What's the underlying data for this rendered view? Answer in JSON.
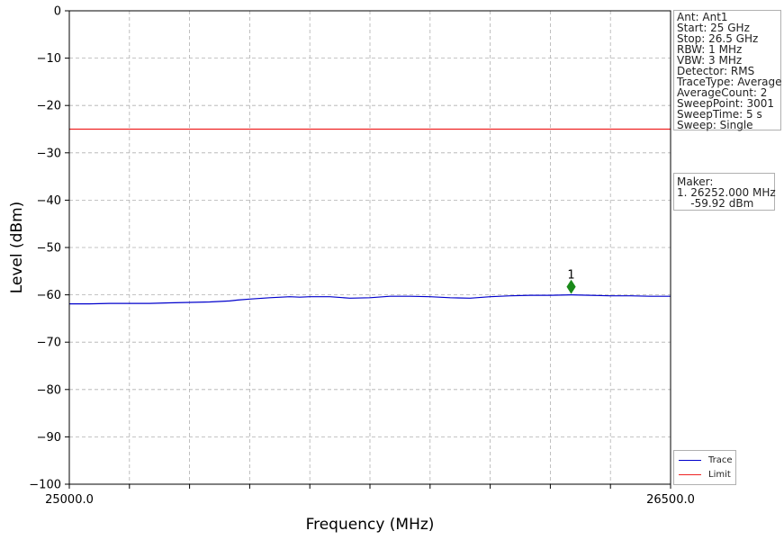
{
  "chart_data": {
    "type": "line",
    "xlabel": "Frequency (MHz)",
    "ylabel": "Level (dBm)",
    "xlim": [
      25000.0,
      26500.0
    ],
    "ylim": [
      -100,
      0
    ],
    "x_tick_labels": [
      "25000.0",
      "26500.0"
    ],
    "x_grid_count": 10,
    "y_ticks": [
      0,
      -10,
      -20,
      -30,
      -40,
      -50,
      -60,
      -70,
      -80,
      -90,
      -100
    ],
    "y_tick_labels": [
      "0",
      "−10",
      "−20",
      "−30",
      "−40",
      "−50",
      "−60",
      "−70",
      "−80",
      "−90",
      "−100"
    ],
    "grid": true,
    "series": [
      {
        "name": "Trace",
        "color": "#0000cc",
        "x": [
          25000,
          25050,
          25100,
          25150,
          25200,
          25250,
          25300,
          25350,
          25400,
          25420,
          25450,
          25500,
          25550,
          25575,
          25600,
          25650,
          25700,
          25750,
          25800,
          25850,
          25900,
          25950,
          26000,
          26050,
          26100,
          26150,
          26200,
          26252,
          26300,
          26350,
          26400,
          26450,
          26500
        ],
        "y": [
          -61.9,
          -61.9,
          -61.8,
          -61.8,
          -61.8,
          -61.7,
          -61.6,
          -61.5,
          -61.3,
          -61.1,
          -60.9,
          -60.6,
          -60.4,
          -60.5,
          -60.4,
          -60.4,
          -60.7,
          -60.6,
          -60.3,
          -60.3,
          -60.4,
          -60.6,
          -60.7,
          -60.4,
          -60.2,
          -60.1,
          -60.1,
          -60.0,
          -60.1,
          -60.2,
          -60.2,
          -60.3,
          -60.3
        ]
      },
      {
        "name": "Limit",
        "color": "#ee2222",
        "x": [
          25000,
          26500
        ],
        "y": [
          -25,
          -25
        ]
      }
    ],
    "markers": [
      {
        "label": "1",
        "x": 26252.0,
        "y": -58.3,
        "color": "#1a8a1a"
      }
    ],
    "legend": {
      "position": "bottom-right",
      "entries": [
        "Trace",
        "Limit"
      ]
    }
  },
  "settings": [
    "Ant: Ant1",
    "Start: 25 GHz",
    "Stop: 26.5 GHz",
    "RBW: 1 MHz",
    "VBW: 3 MHz",
    "Detector: RMS",
    "TraceType: Average",
    "AverageCount: 2",
    "SweepPoint: 3001",
    "SweepTime: 5 s",
    "Sweep: Single"
  ],
  "marker_info": {
    "title": "Maker:",
    "line1": "1. 26252.000 MHz",
    "line2": "    -59.92 dBm"
  }
}
